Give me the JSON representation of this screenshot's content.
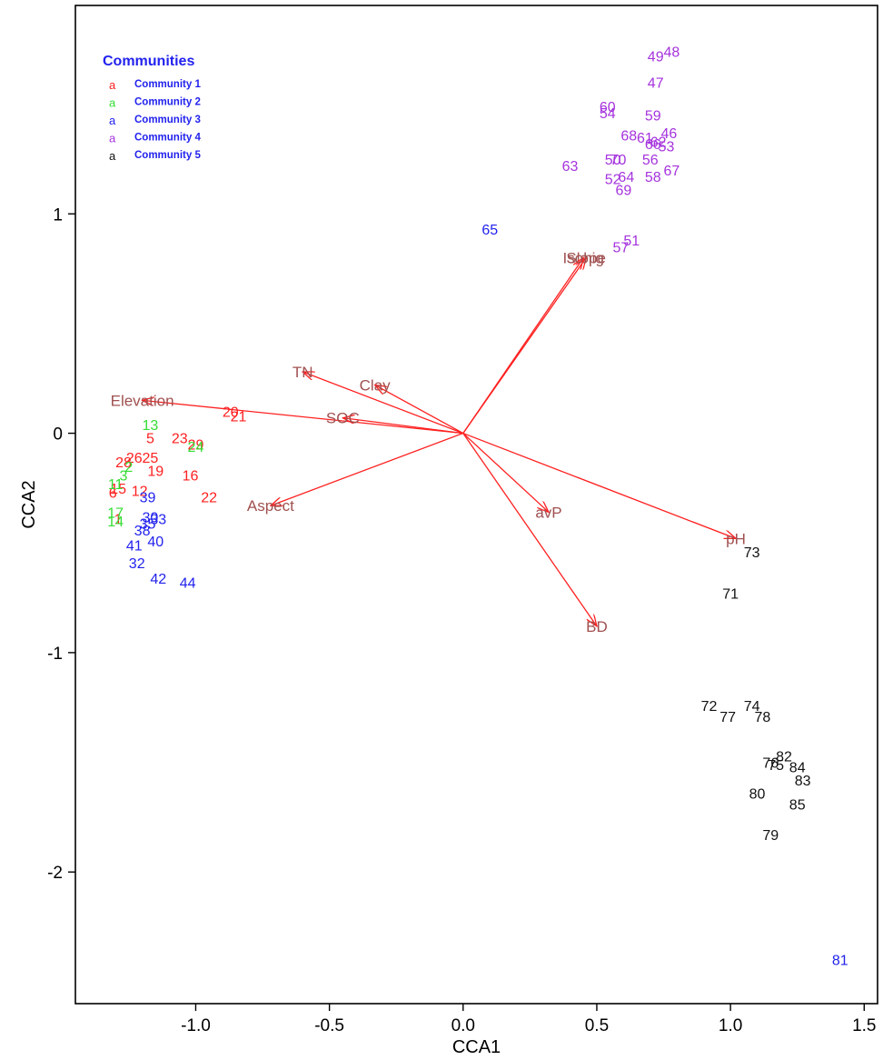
{
  "chart_data": {
    "type": "scatter",
    "xlabel": "CCA1",
    "ylabel": "CCA2",
    "xlim": [
      -1.45,
      1.55
    ],
    "ylim": [
      -2.6,
      1.95
    ],
    "x_ticks": [
      "-1.0",
      "-0.5",
      "0.0",
      "0.5",
      "1.0",
      "1.5"
    ],
    "x_tick_values": [
      -1.0,
      -0.5,
      0.0,
      0.5,
      1.0,
      1.5
    ],
    "y_ticks": [
      "1",
      "0",
      "-1",
      "-2"
    ],
    "y_tick_values": [
      1,
      0,
      -1,
      -2
    ],
    "grid": false,
    "legend": {
      "title": "Communities",
      "placement": "top-left",
      "title_color": "#2222ee",
      "label_color": "#2222ee",
      "items": [
        {
          "symbol": "a",
          "label": "Community 1",
          "color": "#ff2020"
        },
        {
          "symbol": "a",
          "label": "Community 2",
          "color": "#33dd33"
        },
        {
          "symbol": "a",
          "label": "Community 3",
          "color": "#2222ee"
        },
        {
          "symbol": "a",
          "label": "Community 4",
          "color": "#a533dd"
        },
        {
          "symbol": "a",
          "label": "Community 5",
          "color": "#111111"
        }
      ]
    },
    "series": [
      {
        "community": 1,
        "color": "#ff2020",
        "points": [
          {
            "label": "5",
            "x": -1.17,
            "y": -0.02
          },
          {
            "label": "20",
            "x": -0.87,
            "y": 0.1
          },
          {
            "label": "21",
            "x": -0.84,
            "y": 0.08
          },
          {
            "label": "23",
            "x": -1.06,
            "y": -0.02
          },
          {
            "label": "29",
            "x": -1.0,
            "y": -0.05
          },
          {
            "label": "25",
            "x": -1.17,
            "y": -0.11
          },
          {
            "label": "26",
            "x": -1.23,
            "y": -0.11
          },
          {
            "label": "28",
            "x": -1.27,
            "y": -0.13
          },
          {
            "label": "19",
            "x": -1.15,
            "y": -0.17
          },
          {
            "label": "16",
            "x": -1.02,
            "y": -0.19
          },
          {
            "label": "22",
            "x": -0.95,
            "y": -0.29
          },
          {
            "label": "12",
            "x": -1.21,
            "y": -0.26
          },
          {
            "label": "15",
            "x": -1.29,
            "y": -0.25
          },
          {
            "label": "6",
            "x": -1.31,
            "y": -0.27
          },
          {
            "label": "1",
            "x": -1.29,
            "y": -0.39
          }
        ]
      },
      {
        "community": 2,
        "color": "#33dd33",
        "points": [
          {
            "label": "13",
            "x": -1.17,
            "y": 0.04
          },
          {
            "label": "24",
            "x": -1.0,
            "y": -0.06
          },
          {
            "label": "2",
            "x": -1.25,
            "y": -0.15
          },
          {
            "label": "3",
            "x": -1.27,
            "y": -0.19
          },
          {
            "label": "11",
            "x": -1.3,
            "y": -0.23
          },
          {
            "label": "17",
            "x": -1.3,
            "y": -0.36
          },
          {
            "label": "14",
            "x": -1.3,
            "y": -0.4
          }
        ]
      },
      {
        "community": 3,
        "color": "#2222ee",
        "points": [
          {
            "label": "65",
            "x": 0.1,
            "y": 0.93
          },
          {
            "label": "39",
            "x": -1.18,
            "y": -0.29
          },
          {
            "label": "30",
            "x": -1.17,
            "y": -0.38
          },
          {
            "label": "33",
            "x": -1.14,
            "y": -0.39
          },
          {
            "label": "35",
            "x": -1.18,
            "y": -0.41
          },
          {
            "label": "38",
            "x": -1.2,
            "y": -0.44
          },
          {
            "label": "41",
            "x": -1.23,
            "y": -0.51
          },
          {
            "label": "40",
            "x": -1.15,
            "y": -0.49
          },
          {
            "label": "32",
            "x": -1.22,
            "y": -0.59
          },
          {
            "label": "42",
            "x": -1.14,
            "y": -0.66
          },
          {
            "label": "44",
            "x": -1.03,
            "y": -0.68
          },
          {
            "label": "81",
            "x": 1.41,
            "y": -2.4
          }
        ]
      },
      {
        "community": 4,
        "color": "#a533dd",
        "points": [
          {
            "label": "49",
            "x": 0.72,
            "y": 1.72
          },
          {
            "label": "48",
            "x": 0.78,
            "y": 1.74
          },
          {
            "label": "47",
            "x": 0.72,
            "y": 1.6
          },
          {
            "label": "60",
            "x": 0.54,
            "y": 1.49
          },
          {
            "label": "54",
            "x": 0.54,
            "y": 1.46
          },
          {
            "label": "59",
            "x": 0.71,
            "y": 1.45
          },
          {
            "label": "46",
            "x": 0.77,
            "y": 1.37
          },
          {
            "label": "68",
            "x": 0.62,
            "y": 1.36
          },
          {
            "label": "61",
            "x": 0.68,
            "y": 1.35
          },
          {
            "label": "62",
            "x": 0.73,
            "y": 1.33
          },
          {
            "label": "53",
            "x": 0.76,
            "y": 1.31
          },
          {
            "label": "66",
            "x": 0.71,
            "y": 1.32
          },
          {
            "label": "50",
            "x": 0.56,
            "y": 1.25
          },
          {
            "label": "70",
            "x": 0.58,
            "y": 1.25
          },
          {
            "label": "56",
            "x": 0.7,
            "y": 1.25
          },
          {
            "label": "63",
            "x": 0.4,
            "y": 1.22
          },
          {
            "label": "67",
            "x": 0.78,
            "y": 1.2
          },
          {
            "label": "58",
            "x": 0.71,
            "y": 1.17
          },
          {
            "label": "52",
            "x": 0.56,
            "y": 1.16
          },
          {
            "label": "64",
            "x": 0.61,
            "y": 1.17
          },
          {
            "label": "69",
            "x": 0.6,
            "y": 1.11
          },
          {
            "label": "51",
            "x": 0.63,
            "y": 0.88
          },
          {
            "label": "57",
            "x": 0.59,
            "y": 0.85
          }
        ]
      },
      {
        "community": 5,
        "color": "#111111",
        "points": [
          {
            "label": "73",
            "x": 1.08,
            "y": -0.54
          },
          {
            "label": "71",
            "x": 1.0,
            "y": -0.73
          },
          {
            "label": "72",
            "x": 0.92,
            "y": -1.24
          },
          {
            "label": "77",
            "x": 0.99,
            "y": -1.29
          },
          {
            "label": "74",
            "x": 1.08,
            "y": -1.24
          },
          {
            "label": "78",
            "x": 1.12,
            "y": -1.29
          },
          {
            "label": "82",
            "x": 1.2,
            "y": -1.47
          },
          {
            "label": "76",
            "x": 1.15,
            "y": -1.5
          },
          {
            "label": "75",
            "x": 1.17,
            "y": -1.51
          },
          {
            "label": "84",
            "x": 1.25,
            "y": -1.52
          },
          {
            "label": "83",
            "x": 1.27,
            "y": -1.58
          },
          {
            "label": "80",
            "x": 1.1,
            "y": -1.64
          },
          {
            "label": "85",
            "x": 1.25,
            "y": -1.69
          },
          {
            "label": "79",
            "x": 1.15,
            "y": -1.83
          }
        ]
      }
    ],
    "vectors": [
      {
        "label": "Slope",
        "x": 0.46,
        "y": 0.8
      },
      {
        "label": "Isohig",
        "x": 0.45,
        "y": 0.8
      },
      {
        "label": "Elevation",
        "x": -1.2,
        "y": 0.15
      },
      {
        "label": "TN",
        "x": -0.6,
        "y": 0.28
      },
      {
        "label": "Clay",
        "x": -0.33,
        "y": 0.22
      },
      {
        "label": "SOC",
        "x": -0.45,
        "y": 0.07
      },
      {
        "label": "Aspect",
        "x": -0.72,
        "y": -0.33
      },
      {
        "label": "avP",
        "x": 0.32,
        "y": -0.36
      },
      {
        "label": "pH",
        "x": 1.02,
        "y": -0.48
      },
      {
        "label": "BD",
        "x": 0.5,
        "y": -0.88
      }
    ],
    "vector_color": "#ff2020",
    "vector_label_color": "#a05050"
  }
}
